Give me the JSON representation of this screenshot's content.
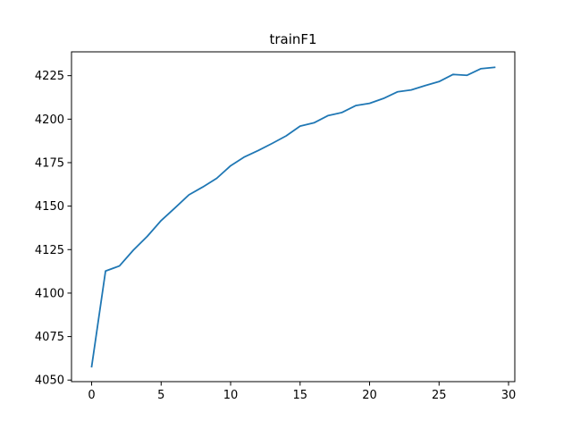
{
  "chart_data": {
    "type": "line",
    "title": "trainF1",
    "xlabel": "",
    "ylabel": "",
    "xlim": [
      -1.45,
      30.45
    ],
    "ylim": [
      4049.1,
      4238.7
    ],
    "xticks": [
      0,
      5,
      10,
      15,
      20,
      25,
      30
    ],
    "yticks": [
      4050,
      4075,
      4100,
      4125,
      4150,
      4175,
      4200,
      4225
    ],
    "grid": false,
    "legend": "none",
    "series": [
      {
        "color": "#1f77b4",
        "x": [
          0,
          1,
          2,
          3,
          4,
          5,
          6,
          7,
          8,
          9,
          10,
          11,
          12,
          13,
          14,
          15,
          16,
          17,
          18,
          19,
          20,
          21,
          22,
          23,
          24,
          25,
          26,
          27,
          28,
          29
        ],
        "values": [
          4057.7,
          4112.7,
          4115.6,
          4124.7,
          4132.6,
          4141.7,
          4149.0,
          4156.5,
          4161.0,
          4166.0,
          4173.2,
          4178.3,
          4182.0,
          4186.1,
          4190.4,
          4196.0,
          4197.9,
          4202.0,
          4203.8,
          4207.8,
          4209.1,
          4211.9,
          4215.7,
          4216.8,
          4219.3,
          4221.6,
          4225.7,
          4225.2,
          4229.0,
          4229.8
        ]
      }
    ]
  }
}
